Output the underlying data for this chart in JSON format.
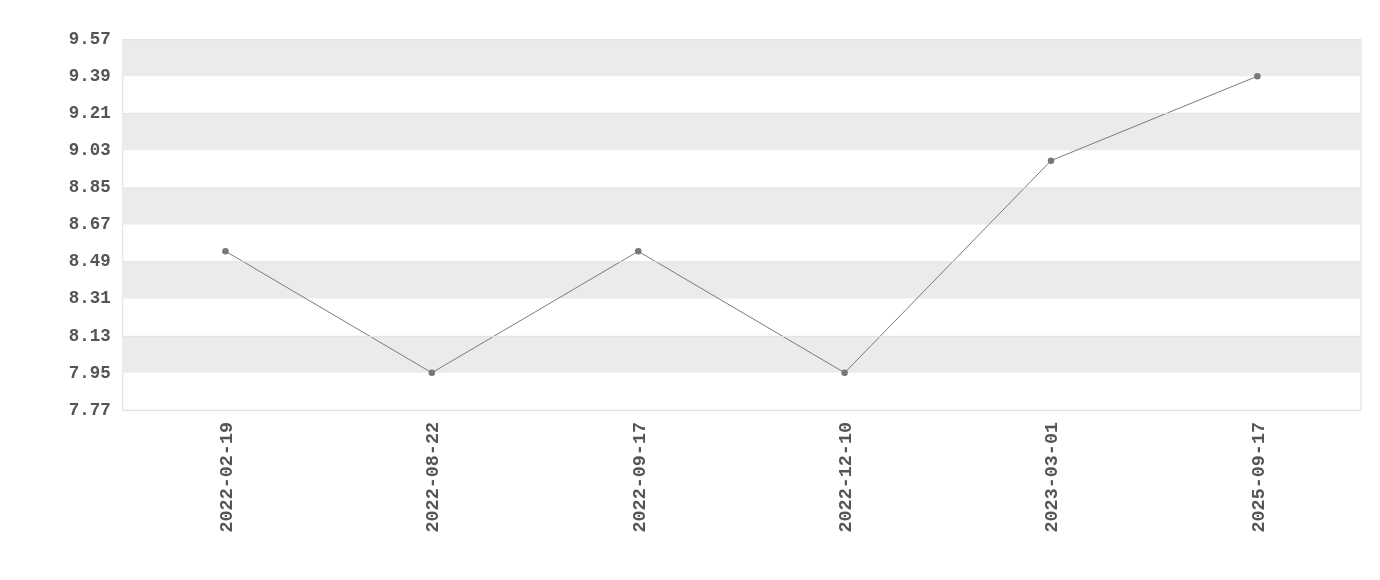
{
  "chart_data": {
    "type": "line",
    "categories": [
      "2022-02-19",
      "2022-08-22",
      "2022-09-17",
      "2022-12-10",
      "2023-03-01",
      "2025-09-17"
    ],
    "series": [
      {
        "color": "#777777",
        "values": [
          8.54,
          7.95,
          8.54,
          7.95,
          8.98,
          9.39
        ]
      }
    ],
    "ylim": [
      7.77,
      9.57
    ],
    "yticks": [
      7.77,
      7.95,
      8.13,
      8.31,
      8.49,
      8.67,
      8.85,
      9.03,
      9.21,
      9.39,
      9.57
    ],
    "grid": true,
    "marker": "circle",
    "line_style": "solid"
  }
}
